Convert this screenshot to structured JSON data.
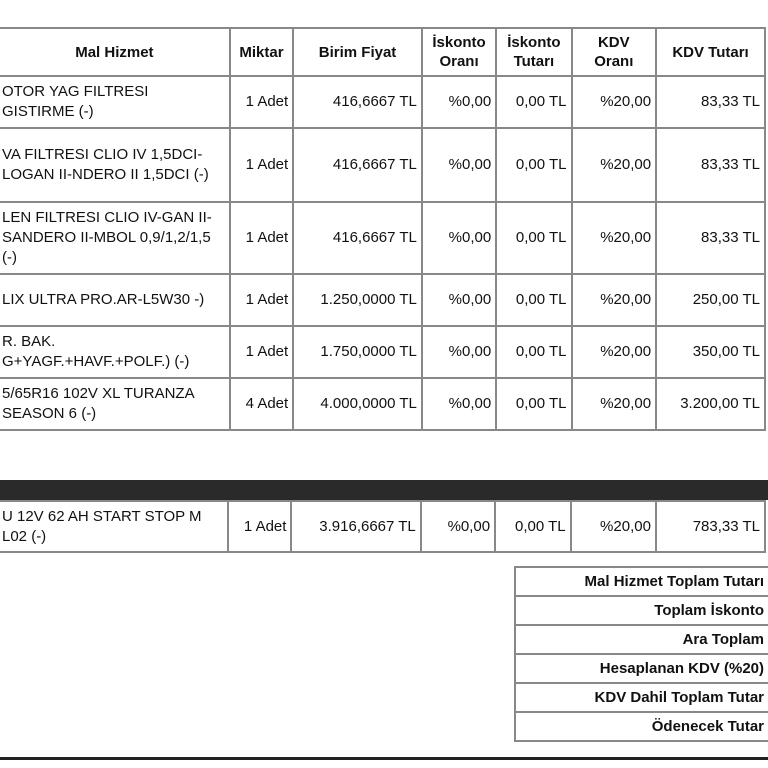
{
  "headers": {
    "mal_hizmet": "Mal Hizmet",
    "miktar": "Miktar",
    "birim_fiyat": "Birim Fiyat",
    "iskonto_orani": "İskonto Oranı",
    "iskonto_tutari": "İskonto Tutarı",
    "kdv_orani": "KDV Oranı",
    "kdv_tutari": "KDV Tutarı"
  },
  "items": [
    {
      "desc": "OTOR YAG FILTRESI GISTIRME (-)",
      "qty": "1 Adet",
      "price": "416,6667 TL",
      "disc_rate": "%0,00",
      "disc_amt": "0,00 TL",
      "vat_rate": "%20,00",
      "vat_amt": "83,33 TL"
    },
    {
      "desc": "VA FILTRESI CLIO IV 1,5DCI-LOGAN II-NDERO II 1,5DCI (-)",
      "qty": "1 Adet",
      "price": "416,6667 TL",
      "disc_rate": "%0,00",
      "disc_amt": "0,00 TL",
      "vat_rate": "%20,00",
      "vat_amt": "83,33 TL"
    },
    {
      "desc": "LEN FILTRESI CLIO IV-GAN II-SANDERO II-MBOL 0,9/1,2/1,5 (-)",
      "qty": "1 Adet",
      "price": "416,6667 TL",
      "disc_rate": "%0,00",
      "disc_amt": "0,00 TL",
      "vat_rate": "%20,00",
      "vat_amt": "83,33 TL"
    },
    {
      "desc": "LIX ULTRA PRO.AR-L5W30 -)",
      "qty": "1 Adet",
      "price": "1.250,0000 TL",
      "disc_rate": "%0,00",
      "disc_amt": "0,00 TL",
      "vat_rate": "%20,00",
      "vat_amt": "250,00 TL"
    },
    {
      "desc": "R. BAK. G+YAGF.+HAVF.+POLF.) (-)",
      "qty": "1 Adet",
      "price": "1.750,0000 TL",
      "disc_rate": "%0,00",
      "disc_amt": "0,00 TL",
      "vat_rate": "%20,00",
      "vat_amt": "350,00 TL"
    },
    {
      "desc": "5/65R16 102V XL TURANZA SEASON 6 (-)",
      "qty": "4 Adet",
      "price": "4.000,0000 TL",
      "disc_rate": "%0,00",
      "disc_amt": "0,00 TL",
      "vat_rate": "%20,00",
      "vat_amt": "3.200,00 TL"
    }
  ],
  "items_page2": [
    {
      "desc": "U 12V 62 AH START STOP M L02 (-)",
      "qty": "1 Adet",
      "price": "3.916,6667 TL",
      "disc_rate": "%0,00",
      "disc_amt": "0,00 TL",
      "vat_rate": "%20,00",
      "vat_amt": "783,33 TL"
    }
  ],
  "summary": [
    "Mal Hizmet Toplam Tutarı",
    "Toplam İskonto",
    "Ara Toplam",
    "Hesaplanan KDV (%20)",
    "KDV Dahil Toplam Tutar",
    "Ödenecek Tutar"
  ]
}
